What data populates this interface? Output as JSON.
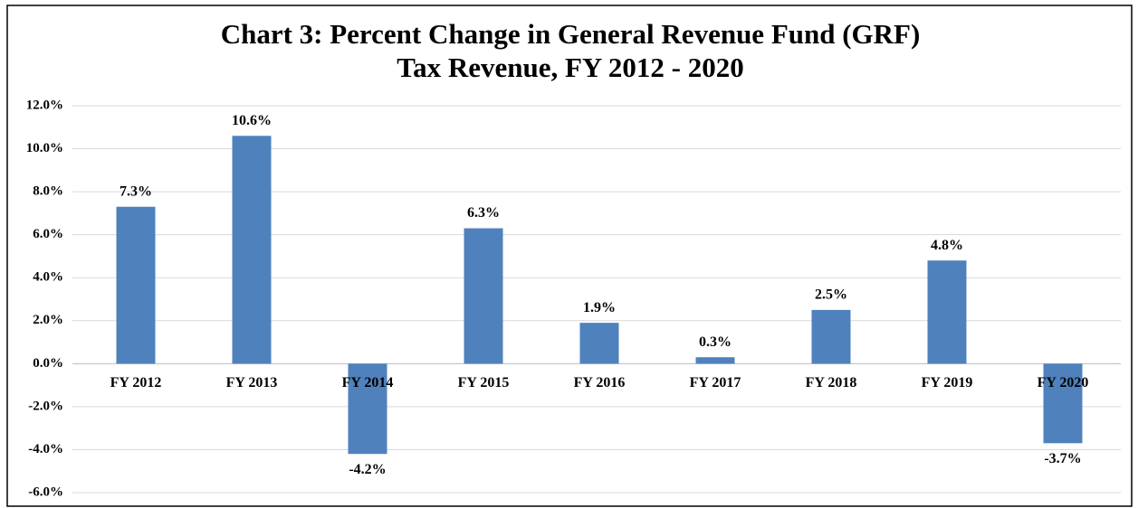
{
  "chart_data": {
    "type": "bar",
    "title": [
      "Chart 3:  Percent Change in General Revenue Fund (GRF)",
      "Tax Revenue, FY 2012 - 2020"
    ],
    "categories": [
      "FY 2012",
      "FY 2013",
      "FY 2014",
      "FY 2015",
      "FY 2016",
      "FY 2017",
      "FY 2018",
      "FY 2019",
      "FY 2020"
    ],
    "values": [
      7.3,
      10.6,
      -4.2,
      6.3,
      1.9,
      0.3,
      2.5,
      4.8,
      -3.7
    ],
    "value_labels": [
      "7.3%",
      "10.6%",
      "-4.2%",
      "6.3%",
      "1.9%",
      "0.3%",
      "2.5%",
      "4.8%",
      "-3.7%"
    ],
    "color": "#4f81bd",
    "ylim": [
      -6,
      12
    ],
    "yticks": [
      {
        "value": -6,
        "label": "-6.0%"
      },
      {
        "value": -4,
        "label": "-4.0%"
      },
      {
        "value": -2,
        "label": "-2.0%"
      },
      {
        "value": 0,
        "label": "0.0%"
      },
      {
        "value": 2,
        "label": "2.0%"
      },
      {
        "value": 4,
        "label": "4.0%"
      },
      {
        "value": 6,
        "label": "6.0%"
      },
      {
        "value": 8,
        "label": "8.0%"
      },
      {
        "value": 10,
        "label": "10.0%"
      },
      {
        "value": 12,
        "label": "12.0%"
      }
    ],
    "grid": true
  }
}
